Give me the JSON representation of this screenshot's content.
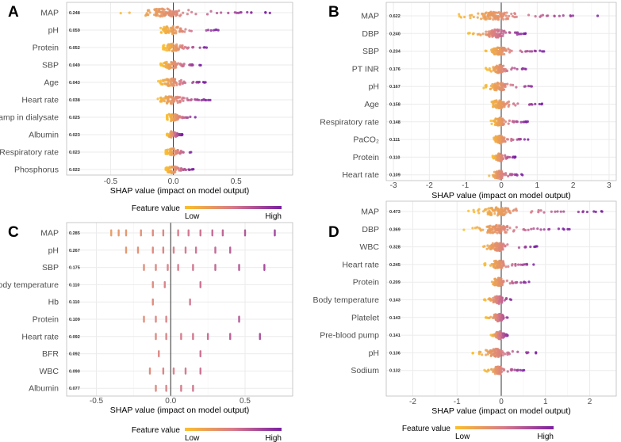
{
  "colors": {
    "low": "#fbc02d",
    "mid": "#d77a8a",
    "high": "#7b1fa2",
    "grid": "#ebebeb",
    "zero": "#333333"
  },
  "chart_data": [
    {
      "panel": "A",
      "type": "scatter",
      "subtype": "shap-beeswarm",
      "xlabel": "SHAP value (impact on model output)",
      "xlim": [
        -0.85,
        0.95
      ],
      "xticks": [
        -0.5,
        0.0,
        0.5
      ],
      "tick_labels": [
        "-0.5",
        "0.0",
        "0.5"
      ],
      "legend": {
        "title": "Feature value",
        "low": "Low",
        "high": "High"
      },
      "features": [
        {
          "name": "MAP",
          "importance": "0.248",
          "range": [
            -0.45,
            0.78
          ],
          "density": 1.0
        },
        {
          "name": "pH",
          "importance": "0.059",
          "range": [
            -0.12,
            0.38
          ],
          "density": 0.7
        },
        {
          "name": "Protein",
          "importance": "0.052",
          "range": [
            -0.08,
            0.28
          ],
          "density": 0.7
        },
        {
          "name": "SBP",
          "importance": "0.049",
          "range": [
            -0.1,
            0.22
          ],
          "density": 0.7
        },
        {
          "name": "Age",
          "importance": "0.043",
          "range": [
            -0.12,
            0.26
          ],
          "density": 0.7
        },
        {
          "name": "Heart rate",
          "importance": "0.038",
          "range": [
            -0.14,
            0.3
          ],
          "density": 0.75
        },
        {
          "name": "No. of bicarbonate amp in dialysate",
          "importance": "0.025",
          "range": [
            -0.05,
            0.18
          ],
          "density": 0.6
        },
        {
          "name": "Albumin",
          "importance": "0.023",
          "range": [
            -0.05,
            0.07
          ],
          "density": 0.55
        },
        {
          "name": "Respiratory rate",
          "importance": "0.023",
          "range": [
            -0.06,
            0.16
          ],
          "density": 0.6
        },
        {
          "name": "Phosphorus",
          "importance": "0.022",
          "range": [
            -0.06,
            0.16
          ],
          "density": 0.6
        }
      ]
    },
    {
      "panel": "B",
      "type": "scatter",
      "subtype": "shap-beeswarm",
      "xlabel": "SHAP value (impact on model output)",
      "xlim": [
        -3.2,
        3.2
      ],
      "xticks": [
        -3,
        -2,
        -1,
        0,
        1,
        2,
        3
      ],
      "tick_labels": [
        "-3",
        "-2",
        "-1",
        "0",
        "1",
        "2",
        "3"
      ],
      "legend": {
        "title": "Feature value",
        "low": "Low",
        "high": "High"
      },
      "features": [
        {
          "name": "MAP",
          "importance": "0.622",
          "range": [
            -1.35,
            2.7
          ],
          "density": 1.0
        },
        {
          "name": "DBP",
          "importance": "0.240",
          "range": [
            -0.95,
            0.75
          ],
          "density": 0.9
        },
        {
          "name": "SBP",
          "importance": "0.234",
          "range": [
            -0.5,
            1.25
          ],
          "density": 0.85
        },
        {
          "name": "PT INR",
          "importance": "0.176",
          "range": [
            -0.45,
            0.8
          ],
          "density": 0.8
        },
        {
          "name": "pH",
          "importance": "0.167",
          "range": [
            -0.5,
            1.05
          ],
          "density": 0.8
        },
        {
          "name": "Age",
          "importance": "0.158",
          "range": [
            -0.4,
            1.15
          ],
          "density": 0.85
        },
        {
          "name": "Respiratory rate",
          "importance": "0.148",
          "range": [
            -0.3,
            0.75
          ],
          "density": 0.8
        },
        {
          "name": "PaCO₂",
          "importance": "0.111",
          "range": [
            -0.3,
            0.78
          ],
          "density": 0.75
        },
        {
          "name": "Protein",
          "importance": "0.110",
          "range": [
            -0.25,
            0.4
          ],
          "density": 0.75
        },
        {
          "name": "Heart rate",
          "importance": "0.109",
          "range": [
            -0.4,
            0.6
          ],
          "density": 0.75
        }
      ]
    },
    {
      "panel": "C",
      "type": "scatter",
      "subtype": "shap-beeswarm",
      "xlabel": "SHAP value (impact on model output)",
      "xlim": [
        -0.7,
        0.82
      ],
      "xticks": [
        -0.5,
        0.0,
        0.5
      ],
      "tick_labels": [
        "-0.5",
        "0.0",
        "0.5"
      ],
      "legend": {
        "title": "Feature value",
        "low": "Low",
        "high": "High"
      },
      "features": [
        {
          "name": "MAP",
          "importance": "0.285",
          "points": [
            -0.4,
            -0.35,
            -0.3,
            -0.2,
            -0.12,
            -0.05,
            0.05,
            0.12,
            0.2,
            0.28,
            0.35,
            0.5,
            0.7
          ]
        },
        {
          "name": "pH",
          "importance": "0.267",
          "points": [
            -0.3,
            -0.22,
            -0.12,
            -0.05,
            0.02,
            0.1,
            0.17,
            0.3,
            0.4
          ]
        },
        {
          "name": "SBP",
          "importance": "0.175",
          "points": [
            -0.18,
            -0.1,
            -0.02,
            0.05,
            0.15,
            0.3,
            0.46,
            0.63
          ]
        },
        {
          "name": "Body temperature",
          "importance": "0.110",
          "points": [
            -0.12,
            -0.04,
            0.2
          ]
        },
        {
          "name": "Hb",
          "importance": "0.110",
          "points": [
            -0.12,
            0.13
          ]
        },
        {
          "name": "Protein",
          "importance": "0.109",
          "points": [
            -0.18,
            -0.1,
            -0.03,
            0.46
          ]
        },
        {
          "name": "Heart rate",
          "importance": "0.092",
          "points": [
            -0.1,
            -0.03,
            0.07,
            0.15,
            0.25,
            0.4,
            0.6
          ]
        },
        {
          "name": "BFR",
          "importance": "0.092",
          "points": [
            -0.08,
            0.2
          ]
        },
        {
          "name": "WBC",
          "importance": "0.090",
          "points": [
            -0.14,
            -0.05,
            0.02,
            0.1,
            0.2
          ]
        },
        {
          "name": "Albumin",
          "importance": "0.077",
          "points": [
            -0.1,
            -0.03,
            0.07,
            0.15
          ]
        }
      ]
    },
    {
      "panel": "D",
      "type": "scatter",
      "subtype": "shap-beeswarm",
      "xlabel": "SHAP value (impact on model output)",
      "xlim": [
        -2.6,
        2.6
      ],
      "xticks": [
        -2,
        -1,
        0,
        1,
        2
      ],
      "tick_labels": [
        "-2",
        "-1",
        "0",
        "1",
        "2"
      ],
      "legend": {
        "title": "Feature value",
        "low": "Low",
        "high": "High"
      },
      "features": [
        {
          "name": "MAP",
          "importance": "0.473",
          "range": [
            -0.75,
            2.3
          ],
          "density": 1.0
        },
        {
          "name": "DBP",
          "importance": "0.369",
          "range": [
            -0.85,
            1.55
          ],
          "density": 0.95
        },
        {
          "name": "WBC",
          "importance": "0.328",
          "range": [
            -0.55,
            0.82
          ],
          "density": 0.9
        },
        {
          "name": "Heart rate",
          "importance": "0.245",
          "range": [
            -0.4,
            0.8
          ],
          "density": 0.85
        },
        {
          "name": "Protein",
          "importance": "0.209",
          "range": [
            -0.35,
            0.65
          ],
          "density": 0.8
        },
        {
          "name": "Body temperature",
          "importance": "0.143",
          "range": [
            -0.4,
            0.3
          ],
          "density": 0.75
        },
        {
          "name": "Platelet",
          "importance": "0.143",
          "range": [
            -0.35,
            0.25
          ],
          "density": 0.7
        },
        {
          "name": "Pre-blood pump",
          "importance": "0.141",
          "range": [
            -0.25,
            0.2
          ],
          "density": 0.7
        },
        {
          "name": "pH",
          "importance": "0.136",
          "range": [
            -0.65,
            0.82
          ],
          "density": 0.8
        },
        {
          "name": "Sodium",
          "importance": "0.132",
          "range": [
            -0.4,
            0.55
          ],
          "density": 0.75
        }
      ]
    }
  ]
}
